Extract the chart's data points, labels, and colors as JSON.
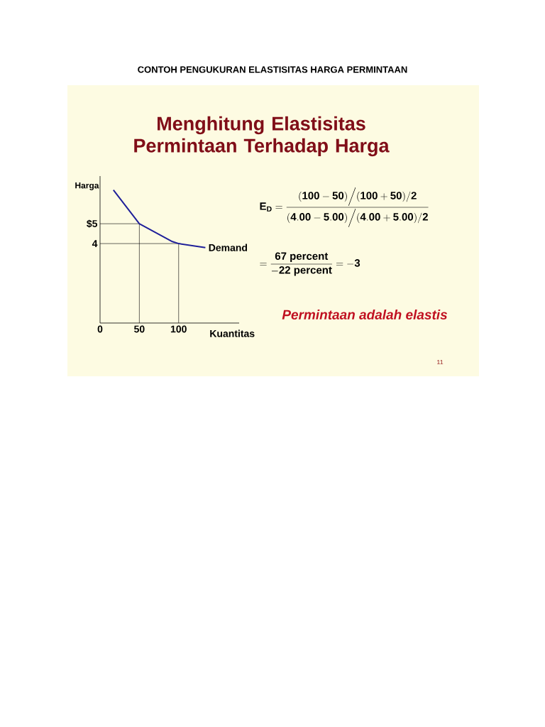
{
  "chart_data": {
    "type": "line",
    "title": "CONTOH PENGUKURAN ELASTISITAS HARGA PERMINTAAN",
    "subtitle": "Menghitung Elastisitas Permintaan Terhadap Harga",
    "xlabel": "Kuantitas",
    "ylabel": "Harga",
    "x": [
      17,
      50,
      92,
      100,
      134
    ],
    "series": [
      {
        "name": "Demand",
        "color": "#1f1f99",
        "values": [
          6.7,
          5,
          4.1,
          4,
          3.8
        ]
      }
    ],
    "xlim": [
      0,
      177
    ],
    "ylim": [
      0,
      7.4
    ],
    "xticks": [
      0,
      50,
      100
    ],
    "yticks": [
      {
        "value": 5,
        "label": "$5"
      },
      4
    ],
    "ref_lines": [
      {
        "axis": "x",
        "value": 50,
        "color": "#000000"
      },
      {
        "axis": "y",
        "value": 5,
        "color": "#000000"
      },
      {
        "axis": "x",
        "value": 100,
        "color": "#000000"
      },
      {
        "axis": "y",
        "value": 4,
        "color": "#000000"
      }
    ],
    "grid": false,
    "legend": false,
    "marker": "none",
    "line_style": "solid",
    "annotations": [
      "\\mathbf{E}_{\\mathbf{D}}=\\dfrac{\\mathbf{(100-50)}\\Big/\\mathbf{(100+50)/2}}{\\mathbf{(4.00-5.00)}\\Big/\\mathbf{(4.00+5.00)/2}}",
      "=\\dfrac{\\mathbf{67\\ percent}}{\\mathbf{-22\\ percent}}=\\mathbf{-3}",
      "Permintaan adalah elastis",
      "11"
    ]
  }
}
